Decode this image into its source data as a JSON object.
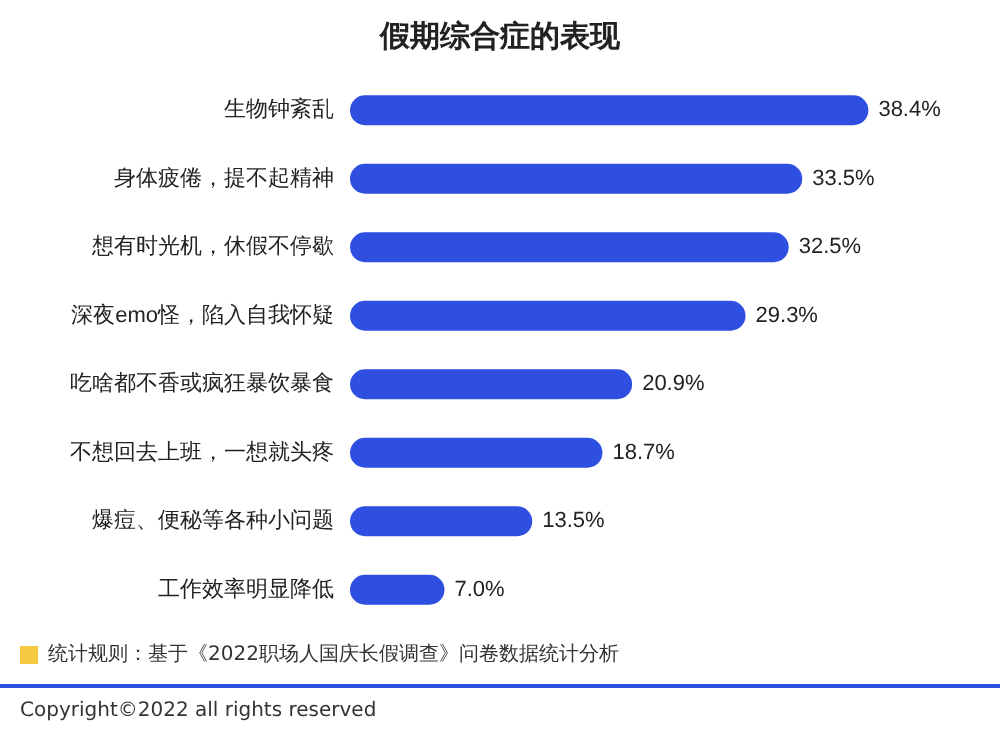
{
  "chart_data": {
    "type": "bar",
    "orientation": "horizontal",
    "title": "假期综合症的表现",
    "categories": [
      "生物钟紊乱",
      "身体疲倦，提不起精神",
      "想有时光机，休假不停歇",
      "深夜emo怪，陷入自我怀疑",
      "吃啥都不香或疯狂暴饮暴食",
      "不想回去上班，一想就头疼",
      "爆痘、便秘等各种小问题",
      "工作效率明显降低"
    ],
    "values": [
      38.4,
      33.5,
      32.5,
      29.3,
      20.9,
      18.7,
      13.5,
      7.0
    ],
    "value_labels": [
      "38.4%",
      "33.5%",
      "32.5%",
      "29.3%",
      "20.9%",
      "18.7%",
      "13.5%",
      "7.0%"
    ],
    "color": "#2f4fe0",
    "annotations": [
      "统计规则：基于《2022职场人国庆长假调查》问卷数据统计分析",
      "Copyright©2022 all rights reserved"
    ]
  }
}
